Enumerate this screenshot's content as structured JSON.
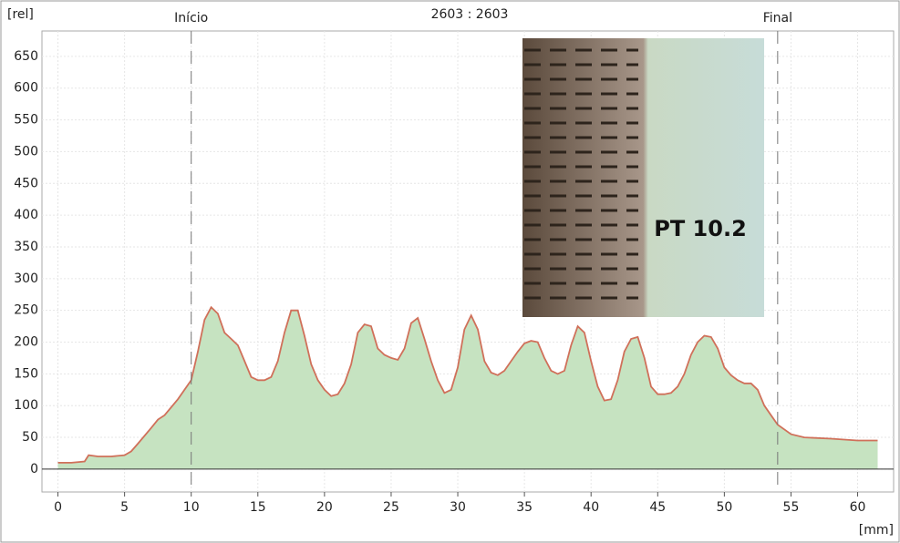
{
  "chart_data": {
    "type": "area",
    "subtitle": "2603 : 2603",
    "ylabel": "[rel]",
    "xlabel": "[mm]",
    "image_label": "PT 10.2",
    "annotations": [
      {
        "text": "Início",
        "x": 10
      },
      {
        "text": "Final",
        "x": 54
      }
    ],
    "color": "#c6e3c1",
    "line_color": "#d0705a",
    "xlim": [
      -1.2,
      62.7
    ],
    "ylim": [
      -36,
      690
    ],
    "xticks": [
      0,
      5,
      10,
      15,
      20,
      25,
      30,
      35,
      40,
      45,
      50,
      55,
      60
    ],
    "yticks": [
      0,
      50,
      100,
      150,
      200,
      250,
      300,
      350,
      400,
      450,
      500,
      550,
      600,
      650
    ],
    "grid": true,
    "x": [
      0,
      1,
      2,
      2.3,
      3,
      4,
      5,
      5.5,
      6,
      7,
      7.5,
      8,
      9,
      10,
      10.5,
      11,
      11.5,
      12,
      12.5,
      13,
      13.5,
      14,
      14.5,
      15,
      15.5,
      16,
      16.5,
      17,
      17.5,
      18,
      18.5,
      19,
      19.5,
      20,
      20.5,
      21,
      21.5,
      22,
      22.5,
      23,
      23.5,
      24,
      24.5,
      25,
      25.5,
      26,
      26.5,
      27,
      27.5,
      28,
      28.5,
      29,
      29.5,
      30,
      30.5,
      31,
      31.5,
      32,
      32.5,
      33,
      33.5,
      34,
      34.5,
      35,
      35.5,
      36,
      36.5,
      37,
      37.5,
      38,
      38.5,
      39,
      39.5,
      40,
      40.5,
      41,
      41.5,
      42,
      42.5,
      43,
      43.5,
      44,
      44.5,
      45,
      45.5,
      46,
      46.5,
      47,
      47.5,
      48,
      48.5,
      49,
      49.5,
      50,
      50.5,
      51,
      51.5,
      52,
      52.5,
      53,
      53.5,
      54,
      55,
      56,
      58,
      60,
      61.5
    ],
    "values": [
      10,
      10,
      12,
      22,
      20,
      20,
      22,
      28,
      40,
      65,
      78,
      85,
      110,
      140,
      185,
      235,
      255,
      245,
      215,
      205,
      195,
      170,
      145,
      140,
      140,
      145,
      170,
      215,
      250,
      250,
      210,
      165,
      140,
      125,
      115,
      118,
      135,
      165,
      215,
      228,
      225,
      190,
      180,
      175,
      172,
      190,
      230,
      238,
      205,
      170,
      140,
      120,
      125,
      160,
      220,
      242,
      220,
      170,
      152,
      148,
      155,
      170,
      185,
      198,
      202,
      200,
      175,
      155,
      150,
      155,
      195,
      225,
      215,
      170,
      130,
      108,
      110,
      140,
      185,
      205,
      208,
      175,
      130,
      118,
      118,
      120,
      130,
      150,
      180,
      200,
      210,
      208,
      190,
      160,
      148,
      140,
      135,
      135,
      125,
      100,
      85,
      70,
      55,
      50,
      48,
      45,
      45
    ]
  }
}
